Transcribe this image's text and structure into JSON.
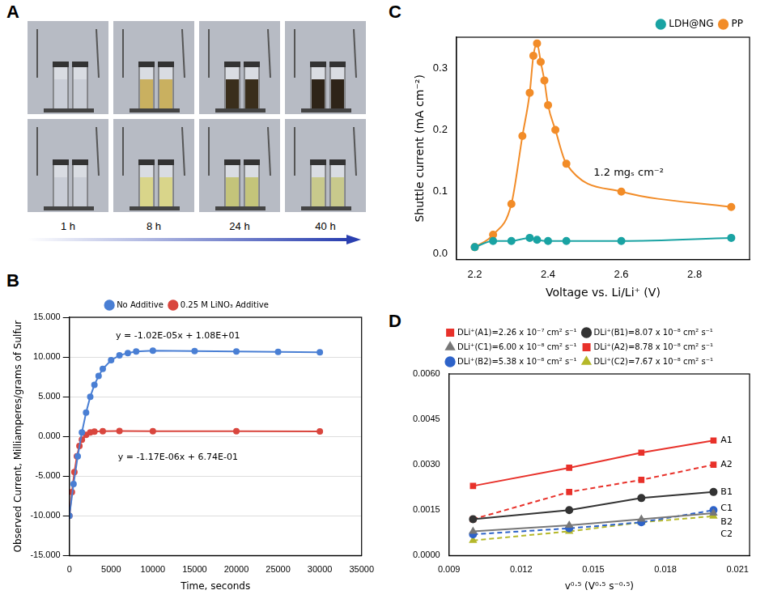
{
  "photo_panel": {
    "panel": "A",
    "time_labels": [
      "1 h",
      "8 h",
      "24 h",
      "40 h"
    ],
    "rows": [
      {
        "liquid_colors": [
          "#c9cdd6",
          "#c9b060",
          "#3a2e1c",
          "#2e2418"
        ]
      },
      {
        "liquid_colors": [
          "#c9cdd6",
          "#d9d58a",
          "#c4c47a",
          "#c8c98c"
        ]
      }
    ]
  },
  "chart_data": [
    {
      "panel": "B",
      "type": "line",
      "x_label": "Time, seconds",
      "y_label": "Observed Current, Milliamperes/grams of Sulfur",
      "xlim": [
        0,
        35000
      ],
      "xticks": [
        0,
        5000,
        10000,
        15000,
        20000,
        25000,
        30000,
        35000
      ],
      "ylim": [
        -15,
        15
      ],
      "yticks": [
        {
          "value": -15,
          "label": "-15.000"
        },
        {
          "value": -10,
          "label": "-10.000"
        },
        {
          "value": -5,
          "label": "-5.000"
        },
        {
          "value": 0,
          "label": "0.000"
        },
        {
          "value": 5,
          "label": "5.000"
        },
        {
          "value": 10,
          "label": "10.000"
        },
        {
          "value": 15,
          "label": "15.000"
        }
      ],
      "grid": true,
      "legend": "top",
      "annotations": [
        {
          "text": "y = -1.02E-05x + 1.08E+01",
          "x": 13000,
          "y": 12.6
        },
        {
          "text": "y = -1.17E-06x + 6.74E-01",
          "x": 13000,
          "y": -2.6
        }
      ],
      "series": [
        {
          "name": "No Additive",
          "color": "#4a7fd4",
          "marker": "circle",
          "line_style": "solid",
          "x": [
            0,
            500,
            1000,
            1500,
            2000,
            2500,
            3000,
            3500,
            4000,
            5000,
            6000,
            7000,
            8000,
            10000,
            15000,
            20000,
            25000,
            30000
          ],
          "values": [
            -10,
            -6,
            -2.5,
            0.5,
            3,
            5,
            6.5,
            7.6,
            8.5,
            9.6,
            10.2,
            10.5,
            10.7,
            10.8,
            10.75,
            10.7,
            10.65,
            10.6
          ]
        },
        {
          "name": "0.25 M LiNO₃ Additive",
          "color": "#d9463e",
          "marker": "circle",
          "line_style": "solid",
          "x": [
            0,
            300,
            600,
            900,
            1200,
            1500,
            2000,
            2500,
            3000,
            4000,
            6000,
            10000,
            20000,
            30000
          ],
          "values": [
            -10,
            -7,
            -4.5,
            -2.5,
            -1.2,
            -0.4,
            0.2,
            0.5,
            0.6,
            0.67,
            0.68,
            0.67,
            0.66,
            0.64
          ]
        }
      ]
    },
    {
      "panel": "C",
      "type": "line",
      "x_label": "Voltage vs. Li/Li⁺ (V)",
      "y_label": "Shuttle current (mA cm⁻²)",
      "xlim": [
        2.15,
        2.95
      ],
      "xticks": [
        2.2,
        2.4,
        2.6,
        2.8
      ],
      "ylim": [
        -0.01,
        0.35
      ],
      "yticks": [
        {
          "value": 0,
          "label": "0.0"
        },
        {
          "value": 0.1,
          "label": "0.1"
        },
        {
          "value": 0.2,
          "label": "0.2"
        },
        {
          "value": 0.3,
          "label": "0.3"
        }
      ],
      "grid": false,
      "legend": "top right",
      "annotations": [
        {
          "text": "1.2 mgₛ cm⁻²",
          "x": 2.62,
          "y": 0.13
        }
      ],
      "series": [
        {
          "name": "LDH@NG",
          "color": "#1aa3a3",
          "marker": "circle",
          "line_style": "solid",
          "x": [
            2.2,
            2.25,
            2.3,
            2.35,
            2.37,
            2.4,
            2.45,
            2.6,
            2.9
          ],
          "values": [
            0.01,
            0.02,
            0.02,
            0.025,
            0.022,
            0.02,
            0.02,
            0.02,
            0.025
          ]
        },
        {
          "name": "PP",
          "color": "#f28c28",
          "marker": "circle",
          "line_style": "solid",
          "x": [
            2.2,
            2.25,
            2.3,
            2.33,
            2.35,
            2.36,
            2.37,
            2.38,
            2.39,
            2.4,
            2.42,
            2.45,
            2.6,
            2.9
          ],
          "values": [
            0.01,
            0.03,
            0.08,
            0.19,
            0.26,
            0.32,
            0.34,
            0.31,
            0.28,
            0.24,
            0.2,
            0.145,
            0.1,
            0.075
          ]
        }
      ]
    },
    {
      "panel": "D",
      "type": "line",
      "x_label": "v⁰·⁵ (V⁰·⁵ s⁻⁰·⁵)",
      "xlim": [
        0.009,
        0.0215
      ],
      "xticks": [
        {
          "value": 0.009,
          "label": "0.009"
        },
        {
          "value": 0.012,
          "label": "0.012"
        },
        {
          "value": 0.015,
          "label": "0.015"
        },
        {
          "value": 0.018,
          "label": "0.018"
        },
        {
          "value": 0.021,
          "label": "0.021"
        }
      ],
      "ylim": [
        0,
        0.006
      ],
      "yticks": [
        {
          "value": 0,
          "label": "0.0000"
        },
        {
          "value": 0.0015,
          "label": "0.0015"
        },
        {
          "value": 0.003,
          "label": "0.0030"
        },
        {
          "value": 0.0045,
          "label": "0.0045"
        },
        {
          "value": 0.006,
          "label": "0.0060"
        }
      ],
      "grid": false,
      "legend": "top",
      "x": [
        0.01,
        0.014,
        0.017,
        0.02
      ],
      "annotations": [
        {
          "text": "A1",
          "x": 0.0203,
          "y": 0.0038
        },
        {
          "text": "A2",
          "x": 0.0203,
          "y": 0.003
        },
        {
          "text": "B1",
          "x": 0.0203,
          "y": 0.0021
        },
        {
          "text": "C1",
          "x": 0.0203,
          "y": 0.00155
        },
        {
          "text": "B2",
          "x": 0.0203,
          "y": 0.0011
        },
        {
          "text": "C2",
          "x": 0.0203,
          "y": 0.0007
        }
      ],
      "series": [
        {
          "name": "DLi⁺(A1)=2.26 x 10⁻⁷ cm² s⁻¹",
          "color": "#e8312a",
          "marker": "square",
          "line_style": "solid",
          "values": [
            0.0023,
            0.0029,
            0.0034,
            0.0038
          ]
        },
        {
          "name": "DLi⁺(B1)=8.07 x 10⁻⁸ cm² s⁻¹",
          "color": "#333333",
          "marker": "circle",
          "line_style": "solid",
          "values": [
            0.0012,
            0.0015,
            0.0019,
            0.0021
          ]
        },
        {
          "name": "DLi⁺(C1)=6.00 x 10⁻⁸ cm² s⁻¹",
          "color": "#777777",
          "marker": "triangle",
          "line_style": "solid",
          "values": [
            0.0008,
            0.001,
            0.0012,
            0.0014
          ]
        },
        {
          "name": "DLi⁺(A2)=8.78 x 10⁻⁸ cm² s⁻¹",
          "color": "#e8312a",
          "marker": "square",
          "line_style": "dashed",
          "values": [
            0.0012,
            0.0021,
            0.0025,
            0.003
          ]
        },
        {
          "name": "DLi⁺(B2)=5.38 x 10⁻⁸ cm² s⁻¹",
          "color": "#2e63c9",
          "marker": "circle",
          "line_style": "dashed",
          "values": [
            0.0007,
            0.0009,
            0.0011,
            0.0015
          ]
        },
        {
          "name": "DLi⁺(C2)=7.67 x 10⁻⁸ cm² s⁻¹",
          "color": "#b5b82a",
          "marker": "triangle",
          "line_style": "dashed",
          "values": [
            0.0005,
            0.0008,
            0.0011,
            0.0013
          ]
        }
      ]
    }
  ]
}
